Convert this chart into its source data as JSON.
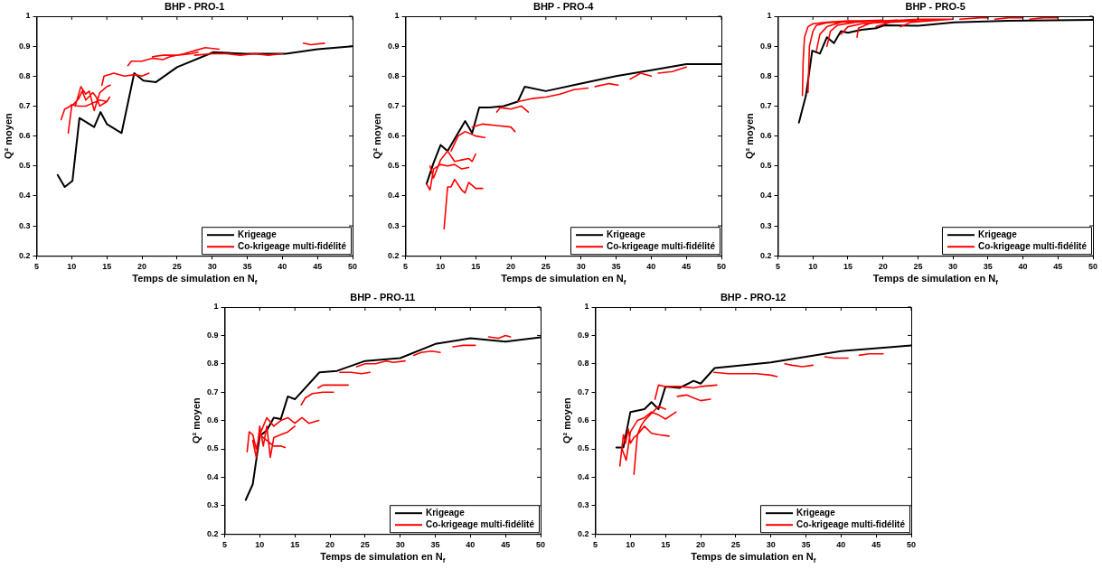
{
  "chart_data": [
    {
      "type": "line",
      "title": "BHP - PRO-1",
      "xlabel": "Temps de simulation en N$_{f}$",
      "ylabel": "Q² moyen",
      "xlim": [
        5,
        50
      ],
      "ylim": [
        0.2,
        1
      ],
      "xticks": [
        5,
        10,
        15,
        20,
        25,
        30,
        35,
        40,
        45,
        50
      ],
      "yticks": [
        0.2,
        0.3,
        0.4,
        0.5,
        0.6,
        0.7,
        0.8,
        0.9,
        1
      ],
      "grid": false,
      "legend": "bottom right",
      "line_style": "solid",
      "marker": "none",
      "series": [
        {
          "name": "Krigeage",
          "color": "#000000",
          "x": [
            8,
            9,
            10.1,
            11.1,
            13.2,
            14.1,
            15,
            17.1,
            18.9,
            20.2,
            22,
            25,
            30.2,
            34.6,
            40.5,
            45,
            50
          ],
          "values": [
            0.47,
            0.43,
            0.45,
            0.66,
            0.63,
            0.68,
            0.64,
            0.61,
            0.81,
            0.785,
            0.78,
            0.83,
            0.88,
            0.875,
            0.875,
            0.89,
            0.9
          ]
        },
        {
          "name": "Co-krigeage multi-fidélité",
          "color": "#ff0000",
          "x": [
            8.5,
            9,
            9.5,
            10,
            11,
            12,
            13,
            14,
            15,
            15.4,
            null,
            9.5,
            10,
            11,
            11.5,
            12,
            13,
            13.5,
            14,
            15,
            null,
            10.5,
            11.3,
            12,
            12.5,
            13.2,
            14,
            15,
            15.5,
            null,
            14.3,
            14.6,
            16,
            17.5,
            19,
            20,
            21,
            null,
            18,
            18.5,
            20,
            21.5,
            23,
            24,
            26,
            27.5,
            29,
            31,
            null,
            21.5,
            23,
            25,
            27,
            28,
            null,
            27.5,
            30,
            32,
            34,
            36,
            38,
            40,
            null,
            43,
            44,
            46
          ],
          "values": [
            0.655,
            0.69,
            0.695,
            0.705,
            0.7,
            0.7,
            0.71,
            0.72,
            0.715,
            0.73,
            null,
            0.61,
            0.7,
            0.725,
            0.75,
            0.72,
            0.745,
            0.73,
            0.7,
            0.715,
            null,
            0.7,
            0.765,
            0.74,
            0.75,
            0.685,
            0.745,
            0.765,
            0.77,
            null,
            0.77,
            0.8,
            0.81,
            0.8,
            0.805,
            0.8,
            0.81,
            null,
            0.835,
            0.85,
            0.85,
            0.86,
            0.855,
            0.865,
            0.875,
            0.885,
            0.895,
            0.89,
            null,
            0.865,
            0.87,
            0.87,
            0.875,
            0.88,
            null,
            0.87,
            0.875,
            0.875,
            0.87,
            0.875,
            0.87,
            0.875,
            null,
            0.91,
            0.905,
            0.91
          ]
        }
      ]
    },
    {
      "type": "line",
      "title": "BHP - PRO-4",
      "xlabel": "Temps de simulation en N$_{f}$",
      "ylabel": "Q² moyen",
      "xlim": [
        5,
        50
      ],
      "ylim": [
        0.2,
        1
      ],
      "xticks": [
        5,
        10,
        15,
        20,
        25,
        30,
        35,
        40,
        45,
        50
      ],
      "yticks": [
        0.2,
        0.3,
        0.4,
        0.5,
        0.6,
        0.7,
        0.8,
        0.9,
        1
      ],
      "grid": false,
      "legend": "bottom right",
      "line_style": "solid",
      "marker": "none",
      "series": [
        {
          "name": "Krigeage",
          "color": "#000000",
          "x": [
            8,
            9,
            10,
            11,
            12.5,
            13.5,
            14.5,
            15.5,
            17,
            19,
            21,
            22,
            25,
            30,
            35,
            40,
            45,
            50
          ],
          "values": [
            0.44,
            0.51,
            0.57,
            0.55,
            0.61,
            0.65,
            0.61,
            0.695,
            0.695,
            0.7,
            0.715,
            0.765,
            0.75,
            0.775,
            0.8,
            0.82,
            0.84,
            0.84
          ]
        },
        {
          "name": "Co-krigeage multi-fidélité",
          "color": "#ff0000",
          "x": [
            8,
            8.5,
            9,
            10,
            11,
            12,
            13,
            14,
            null,
            8.5,
            9,
            10,
            11,
            12,
            13,
            14,
            14.5,
            15,
            null,
            10.5,
            11,
            11.5,
            12,
            13,
            13.5,
            14,
            15,
            16,
            null,
            11.5,
            12.5,
            13.5,
            15,
            16.3,
            null,
            14.5,
            16,
            18,
            20,
            20.6,
            null,
            18,
            18.5,
            20,
            21.5,
            22.5,
            null,
            21,
            23,
            25,
            27,
            29,
            31,
            null,
            32,
            34,
            35.3,
            null,
            37,
            38.5,
            40,
            null,
            41,
            43,
            45
          ],
          "values": [
            0.44,
            0.42,
            0.49,
            0.505,
            0.5,
            0.505,
            0.49,
            0.495,
            null,
            0.5,
            0.46,
            0.52,
            0.55,
            0.515,
            0.52,
            0.525,
            0.515,
            0.54,
            null,
            0.29,
            0.43,
            0.43,
            0.455,
            0.42,
            0.41,
            0.445,
            0.425,
            0.425,
            null,
            0.55,
            0.6,
            0.615,
            0.6,
            0.595,
            null,
            0.63,
            0.64,
            0.635,
            0.63,
            0.615,
            null,
            0.68,
            0.695,
            0.69,
            0.7,
            0.68,
            null,
            0.715,
            0.725,
            0.73,
            0.74,
            0.755,
            0.76,
            null,
            0.765,
            0.775,
            0.77,
            null,
            0.79,
            0.81,
            0.8,
            null,
            0.81,
            0.815,
            0.83
          ]
        }
      ]
    },
    {
      "type": "line",
      "title": "BHP - PRO-5",
      "xlabel": "Temps de simulation en N$_{f}$",
      "ylabel": "Q² moyen",
      "xlim": [
        5,
        50
      ],
      "ylim": [
        0.2,
        1
      ],
      "xticks": [
        5,
        10,
        15,
        20,
        25,
        30,
        35,
        40,
        45,
        50
      ],
      "yticks": [
        0.2,
        0.3,
        0.4,
        0.5,
        0.6,
        0.7,
        0.8,
        0.9,
        1
      ],
      "grid": false,
      "legend": "bottom right",
      "line_style": "solid",
      "marker": "none",
      "series": [
        {
          "name": "Krigeage",
          "color": "#000000",
          "x": [
            8,
            9,
            9.9,
            11,
            12,
            13,
            14,
            15,
            16.9,
            19,
            20.2,
            25,
            30.2,
            37.9,
            50
          ],
          "values": [
            0.645,
            0.735,
            0.885,
            0.875,
            0.93,
            0.91,
            0.95,
            0.945,
            0.955,
            0.96,
            0.97,
            0.968,
            0.98,
            0.985,
            0.988
          ]
        },
        {
          "name": "Co-krigeage multi-fidélité",
          "color": "#ff0000",
          "x": [
            8.5,
            8.6,
            8.8,
            9.3,
            10,
            12,
            15,
            17,
            null,
            9.3,
            9.5,
            10,
            10.5,
            12,
            15,
            18,
            null,
            10.5,
            11,
            12,
            14,
            17,
            20,
            null,
            12,
            12.5,
            13.5,
            16,
            20,
            22,
            null,
            14,
            15,
            17,
            20,
            23,
            25,
            null,
            16.3,
            16.5,
            18,
            21,
            25,
            30,
            null,
            19,
            21,
            25,
            30,
            null,
            22.5,
            24,
            27,
            30,
            null,
            31,
            34,
            35,
            null,
            36,
            38,
            40,
            null,
            41,
            43,
            45
          ],
          "values": [
            0.735,
            0.85,
            0.93,
            0.965,
            0.975,
            0.98,
            0.985,
            0.985,
            null,
            0.745,
            0.9,
            0.95,
            0.97,
            0.978,
            0.982,
            0.985,
            null,
            0.885,
            0.94,
            0.965,
            0.98,
            0.985,
            0.987,
            null,
            0.9,
            0.95,
            0.97,
            0.98,
            0.985,
            0.987,
            null,
            0.94,
            0.965,
            0.975,
            0.98,
            0.985,
            0.99,
            null,
            0.93,
            0.96,
            0.975,
            0.985,
            0.99,
            0.99,
            null,
            0.965,
            0.98,
            0.985,
            0.99,
            null,
            0.965,
            0.98,
            0.985,
            0.99,
            null,
            0.99,
            0.995,
            0.995,
            null,
            0.99,
            0.995,
            0.995,
            null,
            0.99,
            0.995,
            0.995
          ]
        }
      ]
    },
    {
      "type": "line",
      "title": "BHP - PRO-11",
      "xlabel": "Temps de simulation en N$_{f}$",
      "ylabel": "Q² moyen",
      "xlim": [
        5,
        50
      ],
      "ylim": [
        0.2,
        1
      ],
      "xticks": [
        5,
        10,
        15,
        20,
        25,
        30,
        35,
        40,
        45,
        50
      ],
      "yticks": [
        0.2,
        0.3,
        0.4,
        0.5,
        0.6,
        0.7,
        0.8,
        0.9,
        1
      ],
      "grid": false,
      "legend": "bottom right",
      "line_style": "solid",
      "marker": "none",
      "series": [
        {
          "name": "Krigeage",
          "color": "#000000",
          "x": [
            8,
            9,
            10,
            11,
            12,
            13,
            14,
            15,
            18.5,
            21,
            25,
            30,
            35,
            40,
            45,
            50
          ],
          "values": [
            0.32,
            0.375,
            0.545,
            0.565,
            0.61,
            0.605,
            0.685,
            0.675,
            0.77,
            0.775,
            0.81,
            0.82,
            0.87,
            0.89,
            0.878,
            0.893
          ]
        },
        {
          "name": "Co-krigeage multi-fidélité",
          "color": "#ff0000",
          "x": [
            8.2,
            8.5,
            9,
            9.5,
            10,
            11,
            12,
            13,
            13.6,
            null,
            9,
            9.5,
            10,
            10.5,
            11,
            11.5,
            12,
            13,
            14,
            15,
            null,
            10,
            11,
            12,
            13,
            14,
            15,
            16,
            17,
            18.4,
            null,
            15.9,
            16.5,
            17.5,
            19,
            20.5,
            null,
            18.3,
            19,
            20,
            21,
            22.6,
            null,
            21.4,
            23,
            24.5,
            25.7,
            null,
            23.8,
            25,
            26.5,
            28,
            29,
            30.7,
            null,
            31.9,
            33,
            34.5,
            35.7,
            null,
            37.5,
            39,
            40.7,
            null,
            42.6,
            44,
            45,
            45.7
          ],
          "values": [
            0.49,
            0.56,
            0.55,
            0.5,
            0.55,
            0.53,
            0.51,
            0.51,
            0.505,
            null,
            0.53,
            0.47,
            0.58,
            0.51,
            0.58,
            0.47,
            0.54,
            0.55,
            0.56,
            0.58,
            null,
            0.55,
            0.61,
            0.58,
            0.6,
            0.61,
            0.59,
            0.61,
            0.59,
            0.6,
            null,
            0.655,
            0.68,
            0.695,
            0.7,
            0.7,
            null,
            0.715,
            0.725,
            0.725,
            0.725,
            0.725,
            null,
            0.77,
            0.77,
            0.765,
            0.77,
            null,
            0.79,
            0.8,
            0.8,
            0.81,
            0.805,
            0.81,
            null,
            0.83,
            0.84,
            0.845,
            0.84,
            null,
            0.86,
            0.865,
            0.865,
            null,
            0.895,
            0.89,
            0.9,
            0.895
          ]
        }
      ]
    },
    {
      "type": "line",
      "title": "BHP - PRO-12",
      "xlabel": "Temps de simulation en N$_{f}$",
      "ylabel": "Q² moyen",
      "xlim": [
        5,
        50
      ],
      "ylim": [
        0.2,
        1
      ],
      "xticks": [
        5,
        10,
        15,
        20,
        25,
        30,
        35,
        40,
        45,
        50
      ],
      "yticks": [
        0.2,
        0.3,
        0.4,
        0.5,
        0.6,
        0.7,
        0.8,
        0.9,
        1
      ],
      "grid": false,
      "legend": "bottom right",
      "line_style": "solid",
      "marker": "none",
      "series": [
        {
          "name": "Krigeage",
          "color": "#000000",
          "x": [
            8,
            9,
            10,
            12,
            13,
            14,
            15,
            17,
            19,
            20,
            22,
            30,
            40,
            50
          ],
          "values": [
            0.505,
            0.505,
            0.63,
            0.64,
            0.665,
            0.64,
            0.72,
            0.715,
            0.74,
            0.73,
            0.785,
            0.805,
            0.845,
            0.865
          ]
        },
        {
          "name": "Co-krigeage multi-fidélité",
          "color": "#ff0000",
          "x": [
            8.5,
            9,
            9.3,
            9.7,
            10,
            10.5,
            11,
            12,
            13,
            14,
            15.5,
            null,
            8.8,
            9.4,
            10,
            11,
            12,
            13,
            14,
            15,
            16.5,
            null,
            10.5,
            11,
            11.5,
            12,
            13,
            14,
            15,
            null,
            13.5,
            14,
            15,
            17,
            19,
            20,
            22.3,
            null,
            16.7,
            18,
            19,
            20,
            21.4,
            null,
            21.9,
            24,
            26,
            28,
            30,
            30.9,
            null,
            32,
            33,
            34.5,
            36,
            null,
            37.7,
            39,
            41,
            null,
            42.6,
            44,
            46
          ],
          "values": [
            0.44,
            0.55,
            0.52,
            0.57,
            0.52,
            0.54,
            0.55,
            0.58,
            0.555,
            0.55,
            0.545,
            null,
            0.5,
            0.46,
            0.56,
            0.6,
            0.61,
            0.63,
            0.62,
            0.605,
            0.63,
            null,
            0.41,
            0.55,
            0.58,
            0.6,
            0.625,
            0.65,
            0.64,
            null,
            0.675,
            0.725,
            0.72,
            0.72,
            0.715,
            0.72,
            0.725,
            null,
            0.685,
            0.69,
            0.68,
            0.67,
            0.675,
            null,
            0.77,
            0.765,
            0.765,
            0.765,
            0.76,
            0.755,
            null,
            0.8,
            0.795,
            0.79,
            0.795,
            null,
            0.825,
            0.82,
            0.82,
            null,
            0.83,
            0.835,
            0.835
          ]
        }
      ]
    }
  ]
}
